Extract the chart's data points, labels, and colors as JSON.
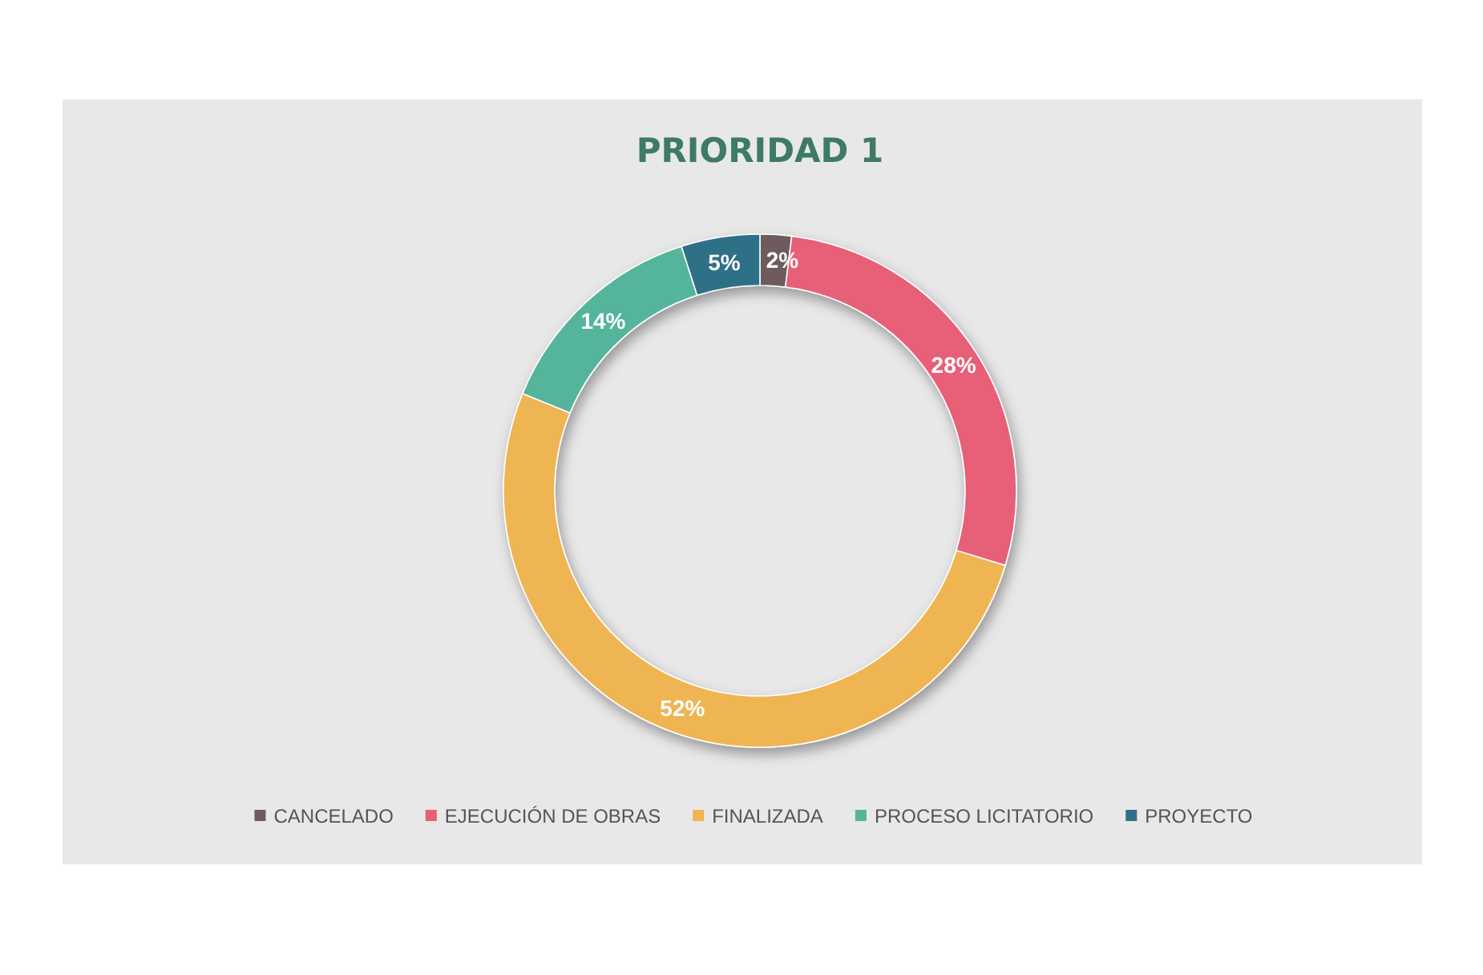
{
  "chart_data": {
    "type": "donut",
    "title": "PRIORIDAD 1",
    "categories": [
      "CANCELADO",
      "EJECUCIÓN DE OBRAS",
      "FINALIZADA",
      "PROCESO LICITATORIO",
      "PROYECTO"
    ],
    "values": [
      2,
      28,
      52,
      14,
      5
    ],
    "colors": [
      "#6e5c5c",
      "#e85f78",
      "#efb553",
      "#55b49c",
      "#2f6f88"
    ],
    "value_labels": [
      "2%",
      "28%",
      "52%",
      "14%",
      "5%"
    ],
    "legend": "bottom"
  }
}
